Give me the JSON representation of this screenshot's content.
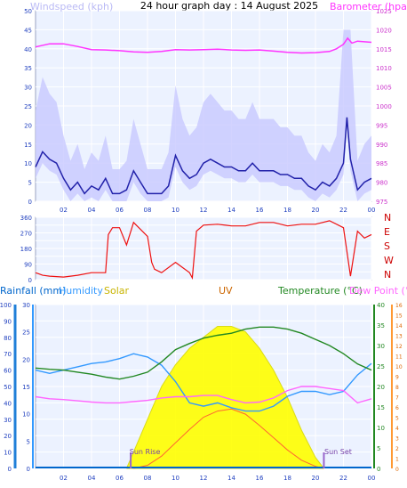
{
  "title": "24 hour graph day : 14 August 2025",
  "colors": {
    "wind": "#6666ff",
    "wind_avg": "#2222aa",
    "baro": "#ff33ff",
    "dir": "#ee1111",
    "rain": "#0066cc",
    "humidity": "#3399ff",
    "solar": "#ffff00",
    "uv": "#cc6600",
    "temp": "#228822",
    "dew": "#ff66ff",
    "sun": "#9966cc"
  },
  "x_ticks": [
    "02",
    "04",
    "06",
    "08",
    "10",
    "12",
    "14",
    "16",
    "18",
    "20",
    "22",
    "00"
  ],
  "chart_data": [
    {
      "type": "line",
      "title": "24 hour graph day : 14 August 2025",
      "series": [
        {
          "name": "Windspeed (kph)",
          "axis_label": "Windspeed (kph)",
          "y_ticks": [
            "0",
            "5",
            "10",
            "15",
            "20",
            "25",
            "30",
            "35",
            "40",
            "45",
            "50"
          ],
          "x_hours": [
            0,
            0.5,
            1,
            1.5,
            2,
            2.5,
            3,
            3.5,
            4,
            4.5,
            5,
            5.5,
            6,
            6.5,
            7,
            7.5,
            8,
            8.5,
            9,
            9.5,
            10,
            10.5,
            11,
            11.5,
            12,
            12.5,
            13,
            13.5,
            14,
            14.5,
            15,
            15.5,
            16,
            16.5,
            17,
            17.5,
            18,
            18.5,
            19,
            19.5,
            20,
            20.5,
            21,
            21.5,
            22,
            22.25,
            22.5,
            23,
            23.5,
            24
          ],
          "values": [
            9,
            13,
            11,
            10,
            6,
            3,
            5,
            2,
            4,
            3,
            6,
            2,
            2,
            3,
            8,
            5,
            2,
            2,
            2,
            4,
            12,
            8,
            6,
            7,
            10,
            11,
            10,
            9,
            9,
            8,
            8,
            10,
            8,
            8,
            8,
            7,
            7,
            6,
            6,
            4,
            3,
            5,
            4,
            6,
            10,
            22,
            11,
            3,
            5,
            6
          ]
        },
        {
          "name": "Barometer (hpa)",
          "axis_label": "Barometer (hpa)",
          "y_ticks": [
            "975",
            "980",
            "985",
            "990",
            "995",
            "1000",
            "1005",
            "1010",
            "1015",
            "1020",
            "1025"
          ],
          "x_hours": [
            0,
            1,
            2,
            3,
            4,
            5,
            6,
            7,
            8,
            9,
            10,
            11,
            12,
            13,
            14,
            15,
            16,
            17,
            18,
            19,
            20,
            21,
            21.5,
            22,
            22.3,
            22.6,
            23,
            24
          ],
          "values": [
            1015.5,
            1016.3,
            1016.3,
            1015.6,
            1014.8,
            1014.7,
            1014.5,
            1014.2,
            1014.1,
            1014.3,
            1014.8,
            1014.7,
            1014.8,
            1014.9,
            1014.7,
            1014.6,
            1014.7,
            1014.4,
            1014.1,
            1013.9,
            1014.0,
            1014.3,
            1015.0,
            1016.2,
            1017.8,
            1016.5,
            1017.0,
            1016.7
          ]
        }
      ]
    },
    {
      "type": "line",
      "series": [
        {
          "name": "Wind direction",
          "y_ticks": [
            "0",
            "45",
            "90",
            "135",
            "180",
            "225",
            "270",
            "315",
            "360"
          ],
          "compass": [
            "N",
            "W",
            "S",
            "E",
            "N"
          ],
          "x_hours": [
            0,
            0.5,
            1,
            2,
            3,
            4,
            5,
            5.2,
            5.5,
            6,
            6.5,
            7,
            8,
            8.3,
            8.5,
            9,
            10,
            11,
            11.2,
            11.5,
            12,
            13,
            14,
            15,
            16,
            17,
            18,
            19,
            20,
            21,
            22,
            22.5,
            23,
            23.5,
            24
          ],
          "values": [
            40,
            25,
            20,
            15,
            25,
            40,
            40,
            260,
            300,
            300,
            200,
            330,
            250,
            100,
            60,
            40,
            100,
            40,
            10,
            280,
            315,
            320,
            310,
            310,
            330,
            330,
            310,
            320,
            320,
            340,
            300,
            20,
            280,
            240,
            260
          ]
        }
      ]
    },
    {
      "type": "area",
      "legend": [
        "Rainfall (mm)",
        "Humidity",
        "Solar",
        "UV",
        "Temperature (°C)",
        "Dew Point (°C)"
      ],
      "annotations": [
        "Sun Rise",
        "Sun Set"
      ],
      "sunrise_hour": 6.8,
      "sunset_hour": 20.6,
      "axes": {
        "rainfall_pct": [
          "0",
          "10",
          "20",
          "30",
          "40",
          "50",
          "60",
          "70",
          "80",
          "90",
          "100"
        ],
        "humidity_pct": [
          "0",
          "5",
          "10",
          "15",
          "20",
          "25",
          "30"
        ],
        "temp_c": [
          "0",
          "5",
          "10",
          "15",
          "20",
          "25",
          "30",
          "35",
          "40"
        ],
        "uv_index": [
          "0",
          "1",
          "2",
          "3",
          "4",
          "5",
          "6",
          "7",
          "8",
          "9",
          "10",
          "11",
          "12",
          "13",
          "14",
          "15",
          "16"
        ]
      },
      "series": [
        {
          "name": "Rainfall (mm)",
          "values": [
            0,
            0,
            0,
            0,
            0,
            0,
            0,
            0,
            0,
            0,
            0,
            0,
            0,
            0,
            0,
            0,
            0,
            0,
            0,
            0,
            0,
            0,
            0,
            0,
            0
          ]
        },
        {
          "name": "Humidity",
          "x_hours": [
            0,
            1,
            2,
            3,
            4,
            5,
            6,
            7,
            8,
            9,
            10,
            11,
            12,
            13,
            14,
            15,
            16,
            17,
            18,
            19,
            20,
            21,
            22,
            23,
            24
          ],
          "values": [
            60,
            58,
            60,
            62,
            64,
            65,
            67,
            70,
            68,
            63,
            53,
            40,
            38,
            40,
            37,
            35,
            35,
            38,
            44,
            47,
            47,
            45,
            47,
            57,
            64
          ]
        },
        {
          "name": "Temperature (°C)",
          "x_hours": [
            0,
            1,
            2,
            3,
            4,
            5,
            6,
            7,
            8,
            9,
            10,
            11,
            12,
            13,
            14,
            15,
            16,
            17,
            18,
            19,
            20,
            21,
            22,
            23,
            24
          ],
          "values": [
            24.5,
            24.2,
            24.0,
            23.5,
            23.0,
            22.3,
            21.8,
            22.5,
            23.5,
            26.0,
            29.0,
            30.5,
            31.8,
            32.5,
            33.0,
            34.0,
            34.5,
            34.5,
            34.0,
            33.0,
            31.5,
            30.0,
            28.0,
            25.5,
            24.0
          ]
        },
        {
          "name": "Dew Point (°C)",
          "x_hours": [
            0,
            1,
            2,
            3,
            4,
            5,
            6,
            7,
            8,
            9,
            10,
            11,
            12,
            13,
            14,
            15,
            16,
            17,
            18,
            19,
            20,
            21,
            22,
            23,
            24
          ],
          "values": [
            17.5,
            17.0,
            16.8,
            16.5,
            16.2,
            16.0,
            16.0,
            16.3,
            16.6,
            17.2,
            17.5,
            17.5,
            17.8,
            17.8,
            16.8,
            16.0,
            16.2,
            17.2,
            19.0,
            20.0,
            20.0,
            19.5,
            19.0,
            16.0,
            17.0
          ]
        },
        {
          "name": "Solar",
          "x_hours": [
            6.5,
            7,
            8,
            9,
            10,
            11,
            12,
            13,
            14,
            15,
            16,
            17,
            18,
            19,
            20,
            20.6
          ],
          "values": [
            0,
            3,
            9,
            15,
            19,
            22,
            24,
            26,
            26,
            25,
            22,
            18,
            13,
            7,
            2,
            0
          ]
        },
        {
          "name": "UV",
          "x_hours": [
            7,
            8,
            9,
            10,
            11,
            12,
            13,
            14,
            15,
            16,
            17,
            18,
            19,
            20,
            20.6
          ],
          "values": [
            0,
            0.3,
            1.2,
            2.5,
            3.8,
            5.0,
            5.6,
            5.8,
            5.3,
            4.2,
            3.0,
            1.8,
            0.8,
            0.2,
            0
          ]
        }
      ]
    }
  ]
}
